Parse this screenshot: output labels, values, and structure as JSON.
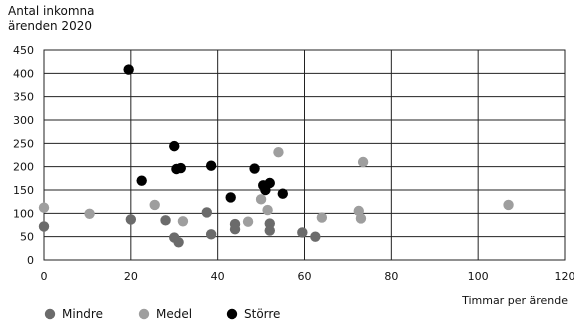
{
  "chart_data": {
    "type": "scatter",
    "ylabel_lines": [
      "Antal inkomna",
      "ärenden 2020"
    ],
    "xlabel": "Timmar per ärende",
    "xlim": [
      0,
      120
    ],
    "ylim": [
      0,
      450
    ],
    "xticks": [
      0,
      20,
      40,
      60,
      80,
      100,
      120
    ],
    "yticks": [
      0,
      50,
      100,
      150,
      200,
      250,
      300,
      350,
      400,
      450
    ],
    "grid": true,
    "legend_position": "bottom-left",
    "series": [
      {
        "name": "Mindre",
        "color": "#6b6b6b",
        "points": [
          [
            0,
            72
          ],
          [
            20,
            87
          ],
          [
            28,
            85
          ],
          [
            30,
            48
          ],
          [
            31,
            38
          ],
          [
            37.5,
            102
          ],
          [
            38.5,
            55
          ],
          [
            44,
            77
          ],
          [
            44,
            66
          ],
          [
            52,
            78
          ],
          [
            52,
            63
          ],
          [
            59.5,
            59
          ],
          [
            62.5,
            50
          ]
        ]
      },
      {
        "name": "Medel",
        "color": "#9e9e9e",
        "points": [
          [
            0,
            112
          ],
          [
            10.5,
            99
          ],
          [
            25.5,
            118
          ],
          [
            32,
            83
          ],
          [
            47,
            82
          ],
          [
            50,
            130
          ],
          [
            51.5,
            107
          ],
          [
            54,
            231
          ],
          [
            64,
            91
          ],
          [
            72.5,
            105
          ],
          [
            73,
            89
          ],
          [
            73.5,
            210
          ],
          [
            107,
            118
          ]
        ]
      },
      {
        "name": "Större",
        "color": "#000000",
        "points": [
          [
            19.5,
            408
          ],
          [
            22.5,
            170
          ],
          [
            30,
            244
          ],
          [
            30.5,
            195
          ],
          [
            31.5,
            197
          ],
          [
            38.5,
            202
          ],
          [
            43,
            134
          ],
          [
            48.5,
            196
          ],
          [
            50.5,
            160
          ],
          [
            51,
            150
          ],
          [
            52,
            165
          ],
          [
            55,
            142
          ]
        ]
      }
    ]
  }
}
